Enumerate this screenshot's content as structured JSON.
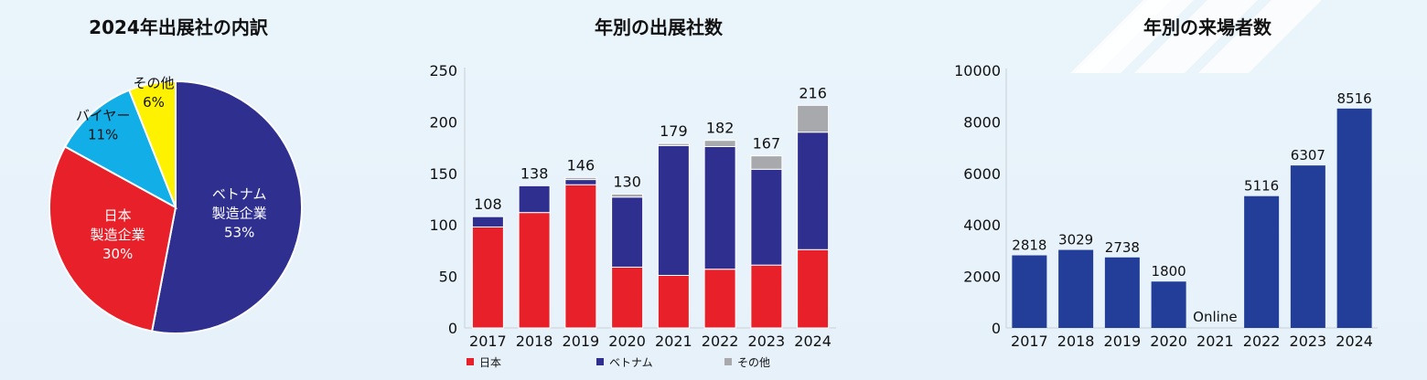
{
  "colors": {
    "red": "#e8202a",
    "navy": "#2e2f8f",
    "gray": "#a7a9ad",
    "cyan": "#12aee8",
    "yellow": "#fff200",
    "bar_blue": "#233e99"
  },
  "chart_data": [
    {
      "type": "pie",
      "title": "2024年出展社の内訳",
      "slices": [
        {
          "label": "ベトナム\n製造企業",
          "value": 53,
          "pct_label": "53%",
          "color": "#2e2f8f",
          "label_color": "#ffffff"
        },
        {
          "label": "日本\n製造企業",
          "value": 30,
          "pct_label": "30%",
          "color": "#e8202a",
          "label_color": "#ffffff"
        },
        {
          "label": "バイヤー",
          "value": 11,
          "pct_label": "11%",
          "color": "#12aee8",
          "label_color": "#111111"
        },
        {
          "label": "その他",
          "value": 6,
          "pct_label": "6%",
          "color": "#fff200",
          "label_color": "#111111"
        }
      ]
    },
    {
      "type": "bar",
      "stacked": true,
      "title": "年別の出展社数",
      "categories": [
        "2017",
        "2018",
        "2019",
        "2020",
        "2021",
        "2022",
        "2023",
        "2024"
      ],
      "series": [
        {
          "name": "日本",
          "color": "#e8202a",
          "values": [
            98,
            112,
            139,
            59,
            51,
            57,
            61,
            76
          ]
        },
        {
          "name": "ベトナム",
          "color": "#2e2f8f",
          "values": [
            10,
            26,
            5,
            68,
            126,
            119,
            93,
            114
          ]
        },
        {
          "name": "その他",
          "color": "#a7a9ad",
          "values": [
            0,
            0,
            2,
            3,
            2,
            6,
            13,
            26
          ]
        }
      ],
      "totals": [
        "108",
        "138",
        "146",
        "130",
        "179",
        "182",
        "167",
        "216"
      ],
      "yticks": [
        0,
        50,
        100,
        150,
        200,
        250
      ],
      "ylim": [
        0,
        250
      ],
      "legend_position": "bottom"
    },
    {
      "type": "bar",
      "title": "年別の来場者数",
      "categories": [
        "2017",
        "2018",
        "2019",
        "2020",
        "2021",
        "2022",
        "2023",
        "2024"
      ],
      "values": [
        2818,
        3029,
        2738,
        1800,
        null,
        5116,
        6307,
        8516
      ],
      "value_labels": [
        "2818",
        "3029",
        "2738",
        "1800",
        "Online",
        "5116",
        "6307",
        "8516"
      ],
      "yticks": [
        0,
        2000,
        4000,
        6000,
        8000,
        10000
      ],
      "ylim": [
        0,
        10000
      ],
      "color": "#233e99"
    }
  ]
}
